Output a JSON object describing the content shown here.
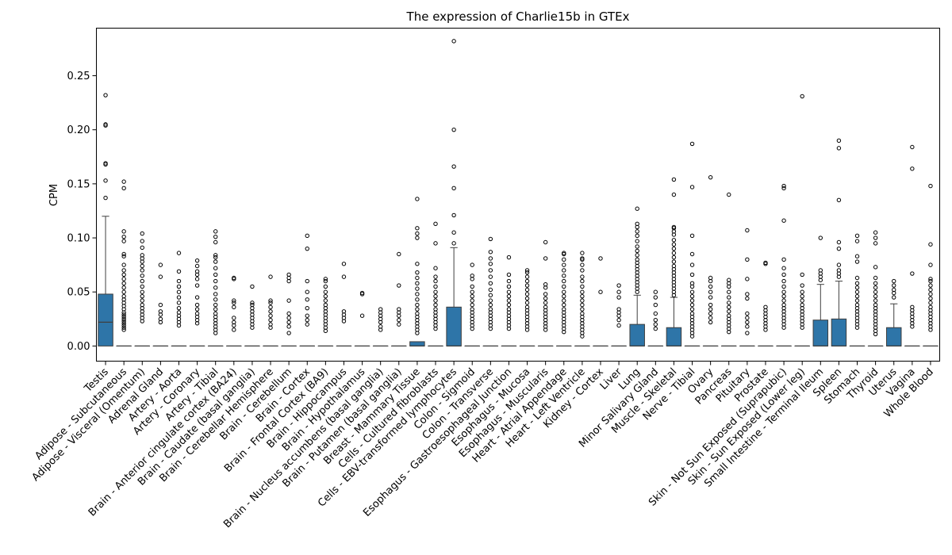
{
  "chart_data": {
    "type": "box",
    "title": "The expression of Charlie15b in GTEx",
    "xlabel": "",
    "ylabel": "CPM",
    "ylim": [
      -0.014,
      0.294
    ],
    "yticks": [
      0.0,
      0.05,
      0.1,
      0.15,
      0.2,
      0.25
    ],
    "ytick_labels": [
      "0.00",
      "0.05",
      "0.10",
      "0.15",
      "0.20",
      "0.25"
    ],
    "grid": false,
    "box_color": "#2e75a8",
    "categories": [
      "Testis",
      "Adipose - Subcutaneous",
      "Adipose - Visceral (Omentum)",
      "Adrenal Gland",
      "Artery - Aorta",
      "Artery - Coronary",
      "Artery - Tibial",
      "Brain - Anterior cingulate cortex (BA24)",
      "Brain - Caudate (basal ganglia)",
      "Brain - Cerebellar Hemisphere",
      "Brain - Cerebellum",
      "Brain - Cortex",
      "Brain - Frontal Cortex (BA9)",
      "Brain - Hippocampus",
      "Brain - Hypothalamus",
      "Brain - Nucleus accumbens (basal ganglia)",
      "Brain - Putamen (basal ganglia)",
      "Breast - Mammary Tissue",
      "Cells - Cultured fibroblasts",
      "Cells - EBV-transformed lymphocytes",
      "Colon - Sigmoid",
      "Colon - Transverse",
      "Esophagus - Gastroesophageal Junction",
      "Esophagus - Mucosa",
      "Esophagus - Muscularis",
      "Heart - Atrial Appendage",
      "Heart - Left Ventricle",
      "Kidney - Cortex",
      "Liver",
      "Lung",
      "Minor Salivary Gland",
      "Muscle - Skeletal",
      "Nerve - Tibial",
      "Ovary",
      "Pancreas",
      "Pituitary",
      "Prostate",
      "Skin - Not Sun Exposed (Suprapubic)",
      "Skin - Sun Exposed (Lower leg)",
      "Small Intestine - Terminal Ileum",
      "Spleen",
      "Stomach",
      "Thyroid",
      "Uterus",
      "Vagina",
      "Whole Blood"
    ],
    "boxes": [
      {
        "q1": 0.0,
        "median": 0.022,
        "q3": 0.048,
        "whisker_low": 0.0,
        "whisker_high": 0.12,
        "outliers": [
          0.137,
          0.153,
          0.168,
          0.169,
          0.204,
          0.205,
          0.232
        ]
      },
      {
        "q1": 0.0,
        "median": 0.0,
        "q3": 0.0,
        "whisker_low": 0.0,
        "whisker_high": 0.0,
        "outliers": [
          0.015,
          0.017,
          0.019,
          0.021,
          0.023,
          0.025,
          0.027,
          0.029,
          0.031,
          0.034,
          0.037,
          0.04,
          0.043,
          0.046,
          0.05,
          0.054,
          0.058,
          0.062,
          0.066,
          0.07,
          0.075,
          0.083,
          0.085,
          0.097,
          0.101,
          0.106,
          0.146,
          0.152
        ]
      },
      {
        "q1": 0.0,
        "median": 0.0,
        "q3": 0.0,
        "whisker_low": 0.0,
        "whisker_high": 0.0,
        "outliers": [
          0.023,
          0.026,
          0.029,
          0.032,
          0.035,
          0.038,
          0.042,
          0.046,
          0.05,
          0.055,
          0.06,
          0.065,
          0.07,
          0.074,
          0.078,
          0.081,
          0.084,
          0.091,
          0.097,
          0.104
        ]
      },
      {
        "q1": 0.0,
        "median": 0.0,
        "q3": 0.0,
        "whisker_low": 0.0,
        "whisker_high": 0.0,
        "outliers": [
          0.022,
          0.025,
          0.029,
          0.032,
          0.038,
          0.064,
          0.075
        ]
      },
      {
        "q1": 0.0,
        "median": 0.0,
        "q3": 0.0,
        "whisker_low": 0.0,
        "whisker_high": 0.0,
        "outliers": [
          0.019,
          0.022,
          0.025,
          0.028,
          0.031,
          0.035,
          0.04,
          0.045,
          0.05,
          0.055,
          0.06,
          0.069,
          0.086
        ]
      },
      {
        "q1": 0.0,
        "median": 0.0,
        "q3": 0.0,
        "whisker_low": 0.0,
        "whisker_high": 0.0,
        "outliers": [
          0.021,
          0.024,
          0.027,
          0.03,
          0.034,
          0.038,
          0.045,
          0.056,
          0.062,
          0.066,
          0.069,
          0.074,
          0.079
        ]
      },
      {
        "q1": 0.0,
        "median": 0.0,
        "q3": 0.0,
        "whisker_low": 0.0,
        "whisker_high": 0.0,
        "outliers": [
          0.012,
          0.015,
          0.018,
          0.021,
          0.024,
          0.027,
          0.03,
          0.034,
          0.038,
          0.043,
          0.048,
          0.054,
          0.06,
          0.066,
          0.072,
          0.078,
          0.082,
          0.084,
          0.096,
          0.101,
          0.106
        ]
      },
      {
        "q1": 0.0,
        "median": 0.0,
        "q3": 0.0,
        "whisker_low": 0.0,
        "whisker_high": 0.0,
        "outliers": [
          0.015,
          0.019,
          0.022,
          0.026,
          0.036,
          0.04,
          0.042,
          0.062,
          0.063
        ]
      },
      {
        "q1": 0.0,
        "median": 0.0,
        "q3": 0.0,
        "whisker_low": 0.0,
        "whisker_high": 0.0,
        "outliers": [
          0.017,
          0.02,
          0.023,
          0.026,
          0.029,
          0.032,
          0.035,
          0.038,
          0.04,
          0.055
        ]
      },
      {
        "q1": 0.0,
        "median": 0.0,
        "q3": 0.0,
        "whisker_low": 0.0,
        "whisker_high": 0.0,
        "outliers": [
          0.017,
          0.02,
          0.024,
          0.028,
          0.032,
          0.036,
          0.04,
          0.042,
          0.064
        ]
      },
      {
        "q1": 0.0,
        "median": 0.0,
        "q3": 0.0,
        "whisker_low": 0.0,
        "whisker_high": 0.0,
        "outliers": [
          0.012,
          0.018,
          0.022,
          0.026,
          0.03,
          0.042,
          0.06,
          0.063,
          0.066
        ]
      },
      {
        "q1": 0.0,
        "median": 0.0,
        "q3": 0.0,
        "whisker_low": 0.0,
        "whisker_high": 0.0,
        "outliers": [
          0.02,
          0.024,
          0.028,
          0.035,
          0.043,
          0.05,
          0.06,
          0.09,
          0.102
        ]
      },
      {
        "q1": 0.0,
        "median": 0.0,
        "q3": 0.0,
        "whisker_low": 0.0,
        "whisker_high": 0.0,
        "outliers": [
          0.014,
          0.017,
          0.02,
          0.023,
          0.026,
          0.029,
          0.032,
          0.035,
          0.038,
          0.042,
          0.046,
          0.05,
          0.055,
          0.06,
          0.062
        ]
      },
      {
        "q1": 0.0,
        "median": 0.0,
        "q3": 0.0,
        "whisker_low": 0.0,
        "whisker_high": 0.0,
        "outliers": [
          0.023,
          0.026,
          0.029,
          0.032,
          0.064,
          0.076
        ]
      },
      {
        "q1": 0.0,
        "median": 0.0,
        "q3": 0.0,
        "whisker_low": 0.0,
        "whisker_high": 0.0,
        "outliers": [
          0.028,
          0.048,
          0.049
        ]
      },
      {
        "q1": 0.0,
        "median": 0.0,
        "q3": 0.0,
        "whisker_low": 0.0,
        "whisker_high": 0.0,
        "outliers": [
          0.015,
          0.018,
          0.022,
          0.025,
          0.028,
          0.031,
          0.034
        ]
      },
      {
        "q1": 0.0,
        "median": 0.0,
        "q3": 0.0,
        "whisker_low": 0.0,
        "whisker_high": 0.0,
        "outliers": [
          0.02,
          0.024,
          0.028,
          0.031,
          0.034,
          0.056,
          0.085
        ]
      },
      {
        "q1": 0.0,
        "median": 0.0,
        "q3": 0.004,
        "whisker_low": 0.0,
        "whisker_high": 0.004,
        "outliers": [
          0.012,
          0.015,
          0.018,
          0.021,
          0.024,
          0.027,
          0.03,
          0.034,
          0.038,
          0.043,
          0.048,
          0.053,
          0.058,
          0.063,
          0.068,
          0.076,
          0.1,
          0.104,
          0.109,
          0.136
        ]
      },
      {
        "q1": 0.0,
        "median": 0.0,
        "q3": 0.0,
        "whisker_low": 0.0,
        "whisker_high": 0.0,
        "outliers": [
          0.016,
          0.019,
          0.022,
          0.025,
          0.028,
          0.031,
          0.034,
          0.038,
          0.042,
          0.046,
          0.05,
          0.055,
          0.06,
          0.064,
          0.072,
          0.095,
          0.113
        ]
      },
      {
        "q1": 0.0,
        "median": 0.0,
        "q3": 0.036,
        "whisker_low": 0.0,
        "whisker_high": 0.091,
        "outliers": [
          0.095,
          0.105,
          0.121,
          0.146,
          0.166,
          0.2,
          0.282
        ]
      },
      {
        "q1": 0.0,
        "median": 0.0,
        "q3": 0.0,
        "whisker_low": 0.0,
        "whisker_high": 0.0,
        "outliers": [
          0.016,
          0.019,
          0.022,
          0.025,
          0.028,
          0.031,
          0.034,
          0.038,
          0.042,
          0.046,
          0.05,
          0.055,
          0.062,
          0.065,
          0.075
        ]
      },
      {
        "q1": 0.0,
        "median": 0.0,
        "q3": 0.0,
        "whisker_low": 0.0,
        "whisker_high": 0.0,
        "outliers": [
          0.016,
          0.019,
          0.022,
          0.025,
          0.028,
          0.031,
          0.034,
          0.038,
          0.042,
          0.047,
          0.052,
          0.058,
          0.064,
          0.07,
          0.076,
          0.081,
          0.087,
          0.099
        ]
      },
      {
        "q1": 0.0,
        "median": 0.0,
        "q3": 0.0,
        "whisker_low": 0.0,
        "whisker_high": 0.0,
        "outliers": [
          0.016,
          0.019,
          0.022,
          0.025,
          0.028,
          0.031,
          0.034,
          0.038,
          0.042,
          0.046,
          0.05,
          0.055,
          0.06,
          0.066,
          0.082
        ]
      },
      {
        "q1": 0.0,
        "median": 0.0,
        "q3": 0.0,
        "whisker_low": 0.0,
        "whisker_high": 0.0,
        "outliers": [
          0.015,
          0.018,
          0.021,
          0.024,
          0.027,
          0.03,
          0.033,
          0.036,
          0.04,
          0.044,
          0.048,
          0.052,
          0.056,
          0.06,
          0.064,
          0.068,
          0.07
        ]
      },
      {
        "q1": 0.0,
        "median": 0.0,
        "q3": 0.0,
        "whisker_low": 0.0,
        "whisker_high": 0.0,
        "outliers": [
          0.015,
          0.018,
          0.021,
          0.024,
          0.027,
          0.03,
          0.033,
          0.036,
          0.04,
          0.044,
          0.048,
          0.054,
          0.057,
          0.081,
          0.096
        ]
      },
      {
        "q1": 0.0,
        "median": 0.0,
        "q3": 0.0,
        "whisker_low": 0.0,
        "whisker_high": 0.0,
        "outliers": [
          0.013,
          0.016,
          0.019,
          0.022,
          0.025,
          0.028,
          0.031,
          0.034,
          0.038,
          0.042,
          0.046,
          0.05,
          0.055,
          0.06,
          0.065,
          0.07,
          0.075,
          0.08,
          0.085,
          0.086
        ]
      },
      {
        "q1": 0.0,
        "median": 0.0,
        "q3": 0.0,
        "whisker_low": 0.0,
        "whisker_high": 0.0,
        "outliers": [
          0.009,
          0.012,
          0.015,
          0.018,
          0.021,
          0.024,
          0.027,
          0.03,
          0.034,
          0.038,
          0.042,
          0.046,
          0.05,
          0.055,
          0.06,
          0.064,
          0.07,
          0.075,
          0.08,
          0.081,
          0.086
        ]
      },
      {
        "q1": 0.0,
        "median": 0.0,
        "q3": 0.0,
        "whisker_low": 0.0,
        "whisker_high": 0.0,
        "outliers": [
          0.05,
          0.081
        ]
      },
      {
        "q1": 0.0,
        "median": 0.0,
        "q3": 0.0,
        "whisker_low": 0.0,
        "whisker_high": 0.0,
        "outliers": [
          0.019,
          0.024,
          0.028,
          0.031,
          0.034,
          0.045,
          0.05,
          0.056
        ]
      },
      {
        "q1": 0.0,
        "median": 0.0,
        "q3": 0.02,
        "whisker_low": 0.0,
        "whisker_high": 0.047,
        "outliers": [
          0.05,
          0.053,
          0.056,
          0.059,
          0.062,
          0.065,
          0.068,
          0.071,
          0.074,
          0.077,
          0.08,
          0.084,
          0.088,
          0.092,
          0.097,
          0.102,
          0.106,
          0.11,
          0.113,
          0.127
        ]
      },
      {
        "q1": 0.0,
        "median": 0.0,
        "q3": 0.0,
        "whisker_low": 0.0,
        "whisker_high": 0.0,
        "outliers": [
          0.016,
          0.02,
          0.024,
          0.03,
          0.038,
          0.045,
          0.05
        ]
      },
      {
        "q1": 0.0,
        "median": 0.0,
        "q3": 0.017,
        "whisker_low": 0.0,
        "whisker_high": 0.045,
        "outliers": [
          0.047,
          0.05,
          0.053,
          0.056,
          0.059,
          0.062,
          0.065,
          0.068,
          0.071,
          0.074,
          0.078,
          0.082,
          0.086,
          0.09,
          0.094,
          0.098,
          0.103,
          0.106,
          0.109,
          0.11,
          0.14,
          0.154
        ]
      },
      {
        "q1": 0.0,
        "median": 0.0,
        "q3": 0.0,
        "whisker_low": 0.0,
        "whisker_high": 0.0,
        "outliers": [
          0.009,
          0.012,
          0.015,
          0.018,
          0.021,
          0.024,
          0.027,
          0.03,
          0.034,
          0.038,
          0.042,
          0.046,
          0.05,
          0.055,
          0.058,
          0.066,
          0.075,
          0.085,
          0.102,
          0.147,
          0.187
        ]
      },
      {
        "q1": 0.0,
        "median": 0.0,
        "q3": 0.0,
        "whisker_low": 0.0,
        "whisker_high": 0.0,
        "outliers": [
          0.022,
          0.026,
          0.03,
          0.034,
          0.038,
          0.045,
          0.05,
          0.055,
          0.06,
          0.063,
          0.156
        ]
      },
      {
        "q1": 0.0,
        "median": 0.0,
        "q3": 0.0,
        "whisker_low": 0.0,
        "whisker_high": 0.0,
        "outliers": [
          0.013,
          0.016,
          0.019,
          0.022,
          0.025,
          0.028,
          0.032,
          0.036,
          0.04,
          0.045,
          0.05,
          0.055,
          0.058,
          0.061,
          0.14
        ]
      },
      {
        "q1": 0.0,
        "median": 0.0,
        "q3": 0.0,
        "whisker_low": 0.0,
        "whisker_high": 0.0,
        "outliers": [
          0.012,
          0.018,
          0.022,
          0.026,
          0.03,
          0.044,
          0.048,
          0.062,
          0.08,
          0.107
        ]
      },
      {
        "q1": 0.0,
        "median": 0.0,
        "q3": 0.0,
        "whisker_low": 0.0,
        "whisker_high": 0.0,
        "outliers": [
          0.015,
          0.018,
          0.021,
          0.024,
          0.027,
          0.03,
          0.033,
          0.036,
          0.076,
          0.077
        ]
      },
      {
        "q1": 0.0,
        "median": 0.0,
        "q3": 0.0,
        "whisker_low": 0.0,
        "whisker_high": 0.0,
        "outliers": [
          0.017,
          0.02,
          0.023,
          0.026,
          0.029,
          0.032,
          0.035,
          0.038,
          0.042,
          0.046,
          0.05,
          0.055,
          0.06,
          0.066,
          0.072,
          0.08,
          0.116,
          0.146,
          0.148
        ]
      },
      {
        "q1": 0.0,
        "median": 0.0,
        "q3": 0.0,
        "whisker_low": 0.0,
        "whisker_high": 0.0,
        "outliers": [
          0.017,
          0.02,
          0.023,
          0.026,
          0.029,
          0.032,
          0.035,
          0.038,
          0.042,
          0.046,
          0.05,
          0.056,
          0.066,
          0.231
        ]
      },
      {
        "q1": 0.0,
        "median": 0.0,
        "q3": 0.024,
        "whisker_low": 0.0,
        "whisker_high": 0.057,
        "outliers": [
          0.061,
          0.064,
          0.067,
          0.07,
          0.1
        ]
      },
      {
        "q1": 0.0,
        "median": 0.0,
        "q3": 0.025,
        "whisker_low": 0.0,
        "whisker_high": 0.06,
        "outliers": [
          0.064,
          0.067,
          0.07,
          0.075,
          0.09,
          0.096,
          0.135,
          0.183,
          0.19
        ]
      },
      {
        "q1": 0.0,
        "median": 0.0,
        "q3": 0.0,
        "whisker_low": 0.0,
        "whisker_high": 0.0,
        "outliers": [
          0.017,
          0.02,
          0.023,
          0.026,
          0.029,
          0.032,
          0.035,
          0.038,
          0.042,
          0.046,
          0.05,
          0.054,
          0.058,
          0.063,
          0.078,
          0.083,
          0.097,
          0.102
        ]
      },
      {
        "q1": 0.0,
        "median": 0.0,
        "q3": 0.0,
        "whisker_low": 0.0,
        "whisker_high": 0.0,
        "outliers": [
          0.011,
          0.014,
          0.017,
          0.02,
          0.023,
          0.026,
          0.029,
          0.032,
          0.035,
          0.038,
          0.042,
          0.046,
          0.05,
          0.054,
          0.058,
          0.063,
          0.073,
          0.095,
          0.1,
          0.105
        ]
      },
      {
        "q1": 0.0,
        "median": 0.0,
        "q3": 0.017,
        "whisker_low": 0.0,
        "whisker_high": 0.039,
        "outliers": [
          0.045,
          0.049,
          0.052,
          0.056,
          0.06
        ]
      },
      {
        "q1": 0.0,
        "median": 0.0,
        "q3": 0.0,
        "whisker_low": 0.0,
        "whisker_high": 0.0,
        "outliers": [
          0.018,
          0.021,
          0.024,
          0.027,
          0.03,
          0.033,
          0.036,
          0.067,
          0.164,
          0.184
        ]
      },
      {
        "q1": 0.0,
        "median": 0.0,
        "q3": 0.0,
        "whisker_low": 0.0,
        "whisker_high": 0.0,
        "outliers": [
          0.015,
          0.018,
          0.021,
          0.024,
          0.027,
          0.03,
          0.033,
          0.036,
          0.04,
          0.044,
          0.048,
          0.052,
          0.056,
          0.06,
          0.062,
          0.075,
          0.094,
          0.148
        ]
      }
    ]
  }
}
